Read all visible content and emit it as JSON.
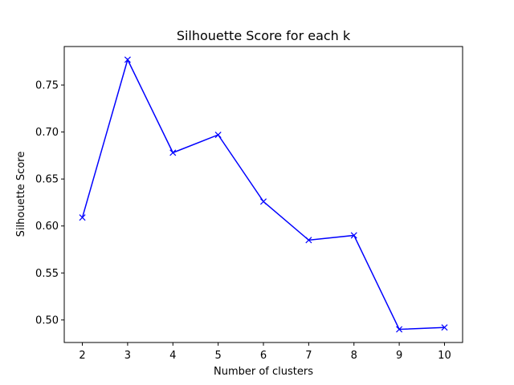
{
  "chart_data": {
    "type": "line",
    "title": "Silhouette Score for each k",
    "xlabel": "Number of clusters",
    "ylabel": "Silhouette Score",
    "x": [
      2,
      3,
      4,
      5,
      6,
      7,
      8,
      9,
      10
    ],
    "series": [
      {
        "values": [
          0.609,
          0.777,
          0.678,
          0.697,
          0.626,
          0.585,
          0.59,
          0.49,
          0.492
        ],
        "color": "#0000ff",
        "marker": "x"
      }
    ],
    "xticks": [
      "2",
      "3",
      "4",
      "5",
      "6",
      "7",
      "8",
      "9",
      "10"
    ],
    "yticks": [
      "0.50",
      "0.55",
      "0.60",
      "0.65",
      "0.70",
      "0.75"
    ],
    "xlim": [
      1.6,
      10.4
    ],
    "ylim": [
      0.476,
      0.791
    ],
    "grid": false
  }
}
